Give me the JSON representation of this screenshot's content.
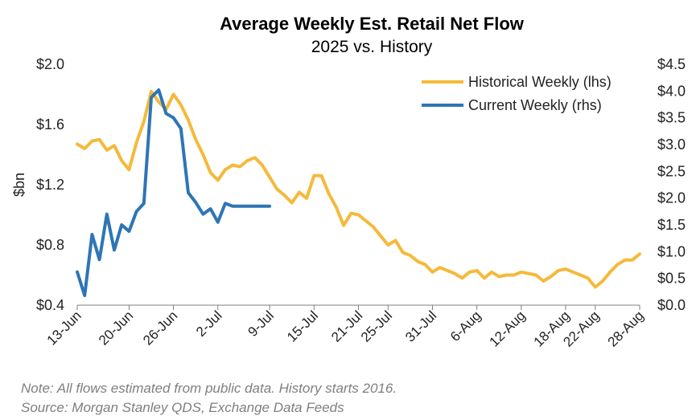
{
  "chart_data": {
    "type": "line",
    "title": "Average Weekly Est. Retail Net Flow",
    "subtitle": "2025 vs. History",
    "ylabel": "$bn",
    "y_left": {
      "ticks": [
        "$2.0",
        "$1.6",
        "$1.2",
        "$0.8",
        "$0.4"
      ],
      "tick_values": [
        2.0,
        1.6,
        1.2,
        0.8,
        0.4
      ],
      "ylim": [
        0.4,
        2.0
      ]
    },
    "y_right": {
      "ticks": [
        "$4.5",
        "$4.0",
        "$3.5",
        "$3.0",
        "$2.5",
        "$2.0",
        "$1.5",
        "$1.0",
        "$0.5",
        "$0.0"
      ],
      "tick_values": [
        4.5,
        4.0,
        3.5,
        3.0,
        2.5,
        2.0,
        1.5,
        1.0,
        0.5,
        0.0
      ],
      "ylim": [
        0.0,
        4.5
      ]
    },
    "x_ticks": [
      {
        "label": "13-Jun",
        "day": 0
      },
      {
        "label": "20-Jun",
        "day": 7
      },
      {
        "label": "26-Jun",
        "day": 13
      },
      {
        "label": "2-Jul",
        "day": 19
      },
      {
        "label": "9-Jul",
        "day": 26
      },
      {
        "label": "15-Jul",
        "day": 32
      },
      {
        "label": "21-Jul",
        "day": 38
      },
      {
        "label": "25-Jul",
        "day": 42
      },
      {
        "label": "31-Jul",
        "day": 48
      },
      {
        "label": "6-Aug",
        "day": 54
      },
      {
        "label": "12-Aug",
        "day": 60
      },
      {
        "label": "18-Aug",
        "day": 66
      },
      {
        "label": "22-Aug",
        "day": 70
      },
      {
        "label": "28-Aug",
        "day": 76
      }
    ],
    "xlim": [
      0,
      76
    ],
    "legend_position": "top-right",
    "series": [
      {
        "name": "Historical Weekly (lhs)",
        "axis": "left",
        "color": "#F5B93A",
        "x": [
          0,
          1,
          2,
          3,
          4,
          5,
          6,
          7,
          8,
          9,
          10,
          11,
          12,
          13,
          14,
          15,
          16,
          17,
          18,
          19,
          20,
          21,
          22,
          23,
          24,
          25,
          26,
          27,
          28,
          29,
          30,
          31,
          32,
          33,
          34,
          35,
          36,
          37,
          38,
          39,
          40,
          41,
          42,
          43,
          44,
          45,
          46,
          47,
          48,
          49,
          50,
          51,
          52,
          53,
          54,
          55,
          56,
          57,
          58,
          59,
          60,
          61,
          62,
          63,
          64,
          65,
          66,
          67,
          68,
          69,
          70,
          71,
          72,
          73,
          74,
          75,
          76
        ],
        "values": [
          1.47,
          1.44,
          1.49,
          1.5,
          1.43,
          1.46,
          1.36,
          1.3,
          1.48,
          1.62,
          1.82,
          1.75,
          1.7,
          1.8,
          1.73,
          1.63,
          1.5,
          1.4,
          1.28,
          1.23,
          1.3,
          1.33,
          1.32,
          1.36,
          1.38,
          1.33,
          1.25,
          1.17,
          1.13,
          1.08,
          1.15,
          1.11,
          1.26,
          1.26,
          1.14,
          1.05,
          0.93,
          1.01,
          1.0,
          0.96,
          0.92,
          0.86,
          0.8,
          0.83,
          0.75,
          0.73,
          0.69,
          0.67,
          0.62,
          0.65,
          0.63,
          0.61,
          0.58,
          0.62,
          0.63,
          0.58,
          0.62,
          0.59,
          0.6,
          0.6,
          0.62,
          0.61,
          0.6,
          0.56,
          0.59,
          0.63,
          0.64,
          0.62,
          0.6,
          0.58,
          0.52,
          0.56,
          0.62,
          0.67,
          0.7,
          0.7,
          0.74
        ]
      },
      {
        "name": "Current Weekly (rhs)",
        "axis": "right",
        "color": "#2E75B6",
        "x": [
          0,
          1,
          2,
          3,
          4,
          5,
          6,
          7,
          8,
          9,
          10,
          11,
          12,
          13,
          14,
          15,
          16,
          17,
          18,
          19,
          20,
          21,
          22,
          23,
          24,
          25,
          26
        ],
        "values": [
          0.62,
          0.18,
          1.32,
          0.85,
          1.7,
          1.03,
          1.5,
          1.38,
          1.75,
          1.9,
          3.88,
          4.02,
          3.58,
          3.5,
          3.3,
          2.1,
          1.92,
          1.7,
          1.8,
          1.55,
          1.9,
          1.85,
          1.85,
          1.85,
          1.85,
          1.85,
          1.85
        ]
      }
    ]
  },
  "note": "Note: All flows estimated from public data. History starts 2016.",
  "source": "Source: Morgan Stanley QDS, Exchange Data Feeds"
}
